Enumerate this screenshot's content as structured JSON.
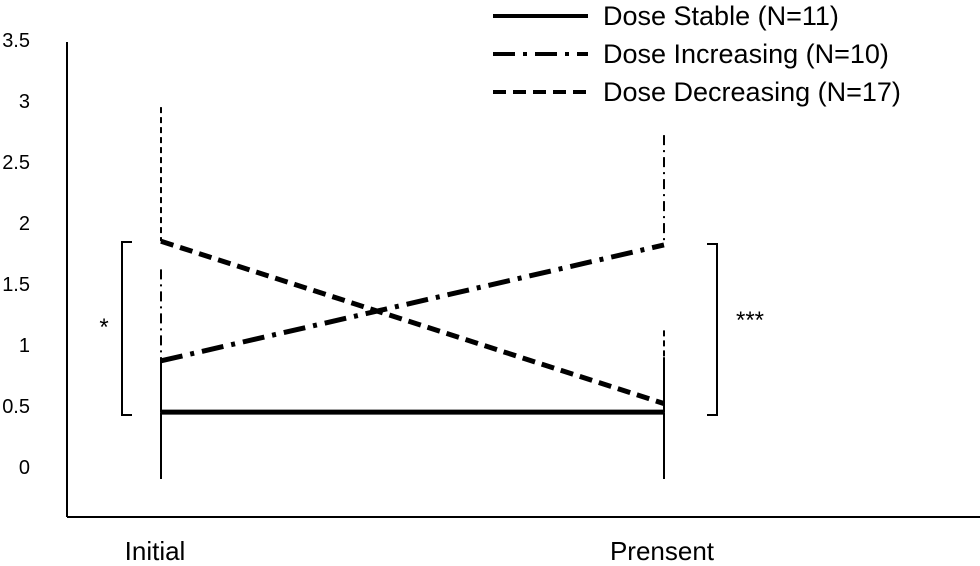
{
  "chart_data": {
    "type": "line",
    "categories": [
      "Initial",
      "Prensent"
    ],
    "y_ticks": [
      "3.5",
      "3",
      "2.5",
      "2",
      "1.5",
      "1",
      "0.5",
      "0"
    ],
    "ylim": [
      0,
      3.5
    ],
    "grid": false,
    "legend_position": "top-right",
    "series": [
      {
        "name": "Dose Stable (N=11)",
        "style": "solid",
        "values": [
          0.45,
          0.45
        ],
        "error_upper": [
          0.45,
          0.45
        ],
        "error_lower": [
          0.45,
          0.45
        ]
      },
      {
        "name": "Dose Increasing (N=10)",
        "style": "dash-dot",
        "values": [
          0.87,
          1.82
        ],
        "error_upper": [
          0.75,
          0.9
        ],
        "error_lower": [
          0.0,
          0.0
        ]
      },
      {
        "name": "Dose Decreasing (N=17)",
        "style": "dashed",
        "values": [
          1.85,
          0.52
        ],
        "error_upper": [
          1.1,
          0.6
        ],
        "error_lower": [
          0.0,
          0.0
        ]
      }
    ],
    "annotations": {
      "initial": "*",
      "present": "***"
    }
  }
}
